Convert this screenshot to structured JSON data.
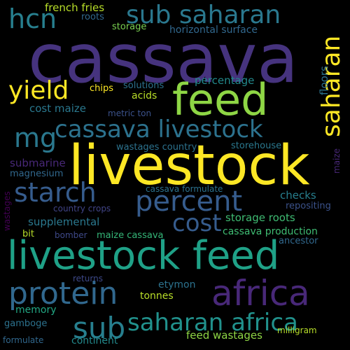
{
  "palette": {
    "background": "#000000",
    "dark_purple": "#440154",
    "purple": "#46337e",
    "slate": "#365c8d",
    "blue": "#31688e",
    "teal_blue": "#277f8e",
    "teal": "#21918c",
    "green_teal": "#1fa187",
    "green": "#3fbc73",
    "light_green": "#8ed645",
    "yellow_green": "#b8de29",
    "yellow": "#fde725"
  },
  "words": [
    {
      "id": "cassava",
      "text": "cassava",
      "color": "#46337e"
    },
    {
      "id": "livestock",
      "text": "livestock",
      "color": "#fde725"
    },
    {
      "id": "livestock-feed",
      "text": "livestock feed",
      "color": "#1fa187"
    },
    {
      "id": "feed",
      "text": "feed",
      "color": "#8ed645"
    },
    {
      "id": "sub-saharan",
      "text": "sub saharan",
      "color": "#2a788e"
    },
    {
      "id": "cassava-livestock",
      "text": "cassava livestock",
      "color": "#2c728e"
    },
    {
      "id": "hcn",
      "text": "hcn",
      "color": "#277f8e"
    },
    {
      "id": "yield",
      "text": "yield",
      "color": "#fde725"
    },
    {
      "id": "mg",
      "text": "mg",
      "color": "#2a788e"
    },
    {
      "id": "starch",
      "text": "starch",
      "color": "#365c8d"
    },
    {
      "id": "percent",
      "text": "percent",
      "color": "#365c8d"
    },
    {
      "id": "cost",
      "text": "cost",
      "color": "#365c8d"
    },
    {
      "id": "protein",
      "text": "protein",
      "color": "#31688e"
    },
    {
      "id": "africa",
      "text": "africa",
      "color": "#482878"
    },
    {
      "id": "sub",
      "text": "sub",
      "color": "#277f8e"
    },
    {
      "id": "saharan-africa",
      "text": "saharan africa",
      "color": "#21918c"
    },
    {
      "id": "saharan",
      "text": "saharan",
      "color": "#fde725"
    },
    {
      "id": "french-fries",
      "text": "french fries",
      "color": "#b8de29"
    },
    {
      "id": "roots",
      "text": "roots",
      "color": "#31688e"
    },
    {
      "id": "storage",
      "text": "storage",
      "color": "#7ad151"
    },
    {
      "id": "horizontal-surface",
      "text": "horizontal surface",
      "color": "#31688e"
    },
    {
      "id": "floors",
      "text": "floors",
      "color": "#2c728e"
    },
    {
      "id": "percentage",
      "text": "percentage",
      "color": "#238a8d"
    },
    {
      "id": "chips",
      "text": "chips",
      "color": "#fde725"
    },
    {
      "id": "solutions",
      "text": "solutions",
      "color": "#2c728e"
    },
    {
      "id": "acids",
      "text": "acids",
      "color": "#b8de29"
    },
    {
      "id": "cost-maize",
      "text": "cost maize",
      "color": "#2a788e"
    },
    {
      "id": "metric-ton",
      "text": "metric ton",
      "color": "#3b528b"
    },
    {
      "id": "wastages-country",
      "text": "wastages country",
      "color": "#2c728e"
    },
    {
      "id": "storehouse",
      "text": "storehouse",
      "color": "#2a788e"
    },
    {
      "id": "submarine",
      "text": "submarine",
      "color": "#482878"
    },
    {
      "id": "magnesium",
      "text": "magnesium",
      "color": "#31688e"
    },
    {
      "id": "maize",
      "text": "maize",
      "color": "#482878"
    },
    {
      "id": "wastages",
      "text": "wastages",
      "color": "#440154"
    },
    {
      "id": "cassava-formulate",
      "text": "cassava formulate",
      "color": "#2c728e"
    },
    {
      "id": "checks",
      "text": "checks",
      "color": "#277f8e"
    },
    {
      "id": "country-crops",
      "text": "country crops",
      "color": "#414487"
    },
    {
      "id": "repositing",
      "text": "repositing",
      "color": "#3b528b"
    },
    {
      "id": "supplemental",
      "text": "supplemental",
      "color": "#2a788e"
    },
    {
      "id": "storage-roots",
      "text": "storage roots",
      "color": "#3fbc73"
    },
    {
      "id": "bit",
      "text": "bit",
      "color": "#b8de29"
    },
    {
      "id": "bomber",
      "text": "bomber",
      "color": "#3e4989"
    },
    {
      "id": "maize-cassava",
      "text": "maize cassava",
      "color": "#35b779"
    },
    {
      "id": "cassava-production",
      "text": "cassava production",
      "color": "#3fbc73"
    },
    {
      "id": "ancestor",
      "text": "ancestor",
      "color": "#31688e"
    },
    {
      "id": "returns",
      "text": "returns",
      "color": "#3e4989"
    },
    {
      "id": "etymon",
      "text": "etymon",
      "color": "#2c728e"
    },
    {
      "id": "tonnes",
      "text": "tonnes",
      "color": "#b8de29"
    },
    {
      "id": "memory",
      "text": "memory",
      "color": "#22a884"
    },
    {
      "id": "gamboge",
      "text": "gamboge",
      "color": "#2c728e"
    },
    {
      "id": "continent",
      "text": "continent",
      "color": "#238a8d"
    },
    {
      "id": "feed-wastages",
      "text": "feed wastages",
      "color": "#8ed645"
    },
    {
      "id": "milligram",
      "text": "milligram",
      "color": "#b8de29"
    },
    {
      "id": "formulate",
      "text": "formulate",
      "color": "#31688e"
    }
  ]
}
